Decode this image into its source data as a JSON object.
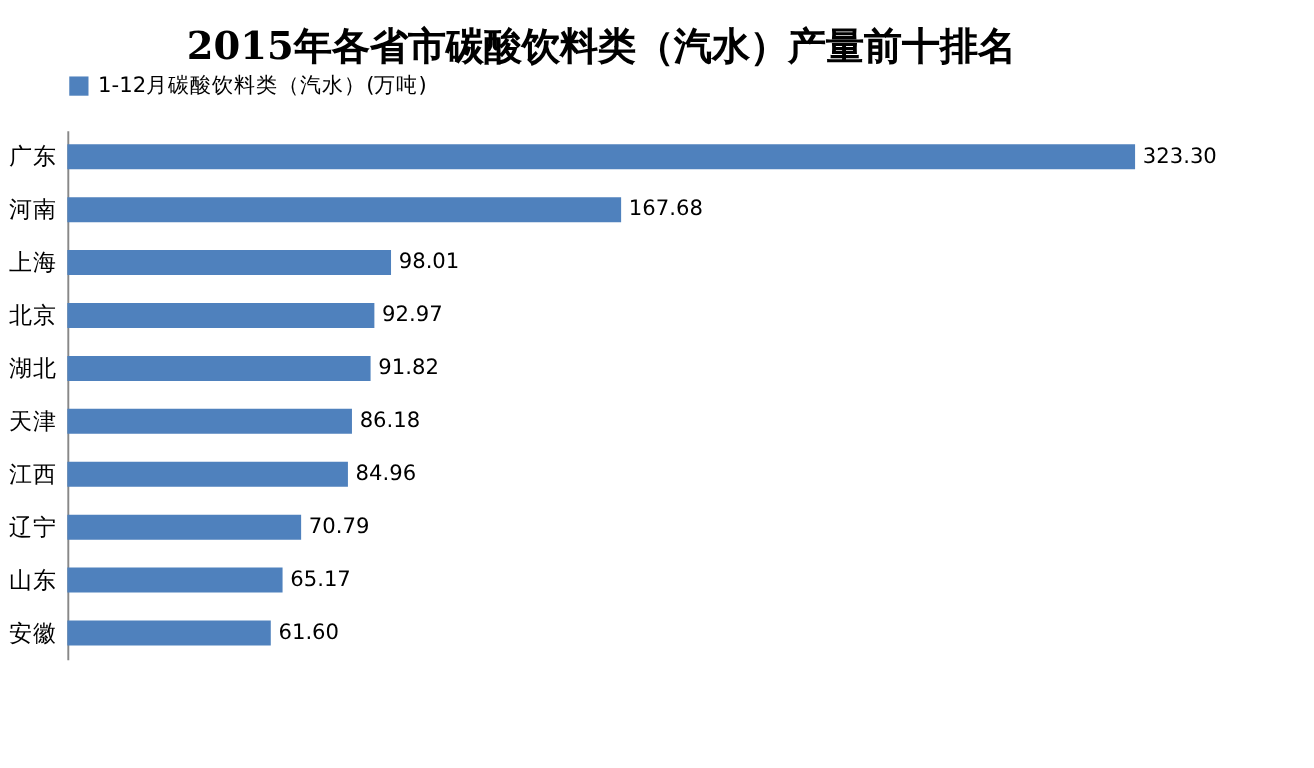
{
  "chart_data": {
    "type": "bar",
    "orientation": "horizontal",
    "title": "2015年各省市碳酸饮料类（汽水）产量前十排名",
    "categories": [
      "广东",
      "河南",
      "上海",
      "北京",
      "湖北",
      "天津",
      "江西",
      "辽宁",
      "山东",
      "安徽"
    ],
    "series": [
      {
        "name": "1-12月碳酸饮料类（汽水）(万吨)",
        "color": "#4f81bd",
        "values": [
          323.3,
          167.68,
          98.01,
          92.97,
          91.82,
          86.18,
          84.96,
          70.79,
          65.17,
          61.6
        ],
        "value_labels": [
          "323.30",
          "167.68",
          "98.01",
          "92.97",
          "91.82",
          "86.18",
          "84.96",
          "70.79",
          "65.17",
          "61.60"
        ]
      }
    ],
    "legend": "top",
    "grid": false,
    "tick_labels": "y"
  }
}
